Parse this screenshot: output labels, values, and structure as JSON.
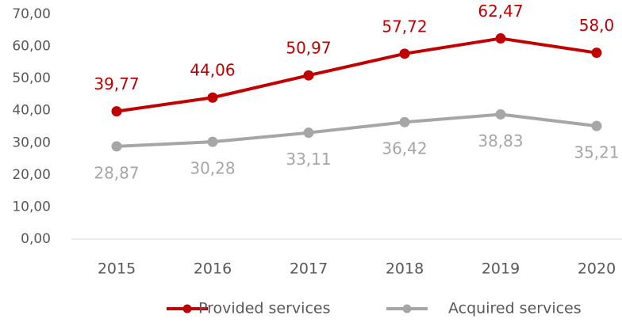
{
  "chart_data": {
    "type": "line",
    "categories": [
      "2015",
      "2016",
      "2017",
      "2018",
      "2019",
      "2020"
    ],
    "series": [
      {
        "name": "Provided services",
        "color": "#c00000",
        "values": [
          39.77,
          44.06,
          50.97,
          57.72,
          62.47,
          58.0
        ],
        "value_labels": [
          "39,77",
          "44,06",
          "50,97",
          "57,72",
          "62,47",
          "58,0"
        ]
      },
      {
        "name": "Acquired services",
        "color": "#a6a6a6",
        "values": [
          28.87,
          30.28,
          33.11,
          36.42,
          38.83,
          35.21
        ],
        "value_labels": [
          "28,87",
          "30,28",
          "33,11",
          "36,42",
          "38,83",
          "35,21"
        ]
      }
    ],
    "ylim": [
      0,
      70
    ],
    "yticks": [
      {
        "value": 0,
        "label": "0,00"
      },
      {
        "value": 10,
        "label": "10,00"
      },
      {
        "value": 20,
        "label": "20,00"
      },
      {
        "value": 30,
        "label": "30,00"
      },
      {
        "value": 40,
        "label": "40,00"
      },
      {
        "value": 50,
        "label": "50,00"
      },
      {
        "value": 60,
        "label": "60,00"
      },
      {
        "value": 70,
        "label": "70,00"
      }
    ],
    "legend": "bottom"
  }
}
